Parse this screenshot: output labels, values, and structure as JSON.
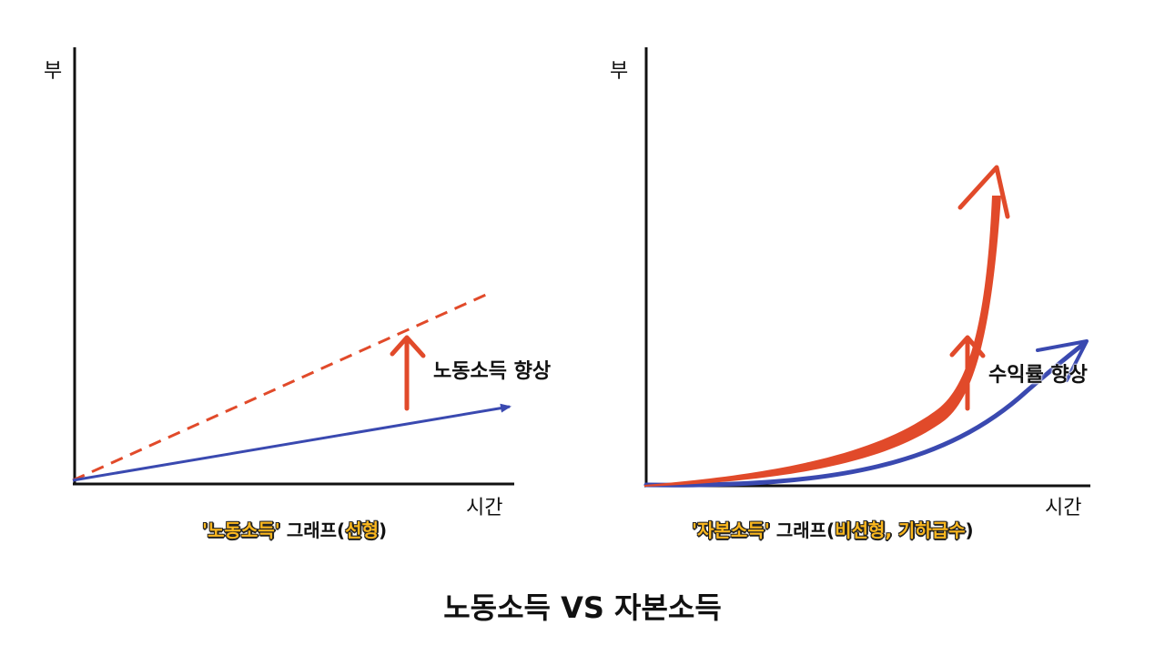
{
  "left": {
    "y_label": "부",
    "x_label": "시간",
    "note": "노동소득 향상",
    "caption": {
      "highlight1": "'노동소득'",
      "middle": " 그래프(",
      "highlight2": "선형",
      "end": ")"
    }
  },
  "right": {
    "y_label": "부",
    "x_label": "시간",
    "note": "수익률 향상",
    "caption": {
      "highlight1": "'자본소득'",
      "middle": " 그래프(",
      "highlight2": "비선형, 기하급수",
      "end": ")"
    }
  },
  "title": "노동소득 VS 자본소득",
  "colors": {
    "axis": "#111111",
    "blue_line": "#3a49b0",
    "red_line": "#e14a2a",
    "highlight": "#fbb71e"
  }
}
